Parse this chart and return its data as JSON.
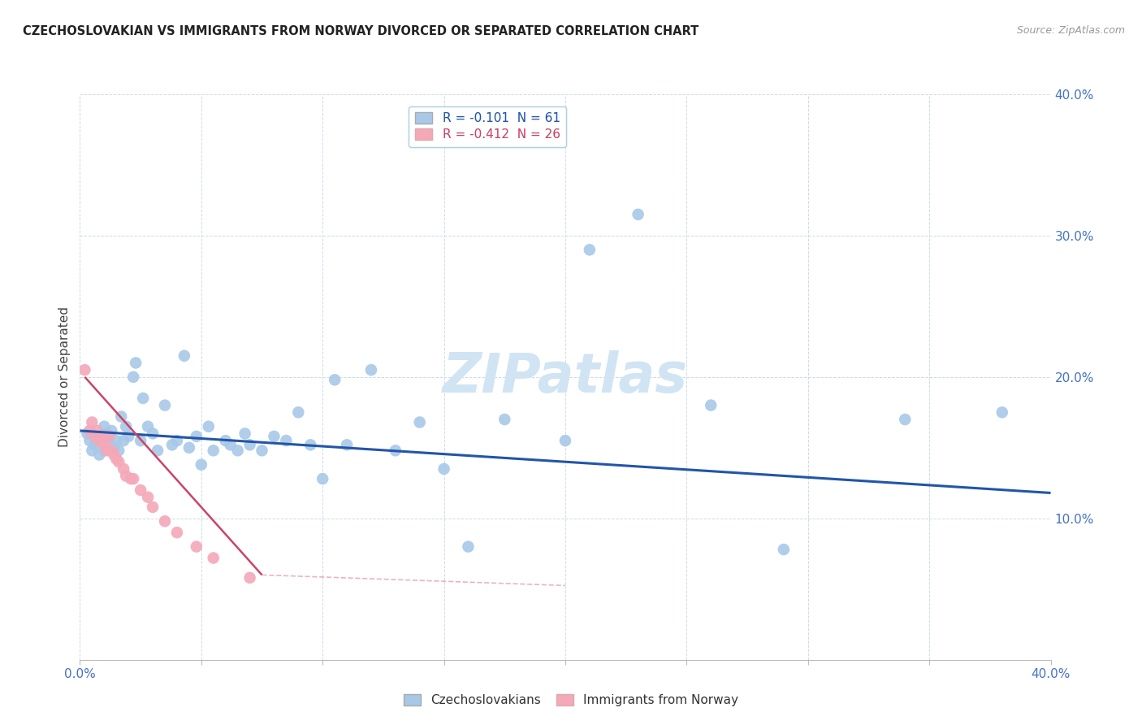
{
  "title": "CZECHOSLOVAKIAN VS IMMIGRANTS FROM NORWAY DIVORCED OR SEPARATED CORRELATION CHART",
  "source": "Source: ZipAtlas.com",
  "ylabel": "Divorced or Separated",
  "xlim": [
    0.0,
    0.4
  ],
  "ylim": [
    0.0,
    0.4
  ],
  "blue_R": "-0.101",
  "blue_N": "61",
  "pink_R": "-0.412",
  "pink_N": "26",
  "blue_color": "#a8c8e8",
  "pink_color": "#f4a8b8",
  "blue_line_color": "#2255aa",
  "pink_line_color": "#cc4466",
  "watermark_color": "#d0e4f4",
  "title_color": "#222222",
  "axis_label_color": "#4472c4",
  "blue_scatter_x": [
    0.003,
    0.004,
    0.005,
    0.006,
    0.007,
    0.008,
    0.009,
    0.01,
    0.01,
    0.011,
    0.012,
    0.013,
    0.014,
    0.015,
    0.016,
    0.017,
    0.018,
    0.019,
    0.02,
    0.022,
    0.023,
    0.025,
    0.026,
    0.028,
    0.03,
    0.032,
    0.035,
    0.038,
    0.04,
    0.043,
    0.045,
    0.048,
    0.05,
    0.053,
    0.055,
    0.06,
    0.062,
    0.065,
    0.068,
    0.07,
    0.075,
    0.08,
    0.085,
    0.09,
    0.095,
    0.1,
    0.105,
    0.11,
    0.12,
    0.13,
    0.14,
    0.15,
    0.16,
    0.175,
    0.2,
    0.21,
    0.23,
    0.26,
    0.29,
    0.34,
    0.38
  ],
  "blue_scatter_y": [
    0.16,
    0.155,
    0.148,
    0.152,
    0.155,
    0.145,
    0.158,
    0.165,
    0.148,
    0.16,
    0.155,
    0.162,
    0.15,
    0.155,
    0.148,
    0.172,
    0.155,
    0.165,
    0.158,
    0.2,
    0.21,
    0.155,
    0.185,
    0.165,
    0.16,
    0.148,
    0.18,
    0.152,
    0.155,
    0.215,
    0.15,
    0.158,
    0.138,
    0.165,
    0.148,
    0.155,
    0.152,
    0.148,
    0.16,
    0.152,
    0.148,
    0.158,
    0.155,
    0.175,
    0.152,
    0.128,
    0.198,
    0.152,
    0.205,
    0.148,
    0.168,
    0.135,
    0.08,
    0.17,
    0.155,
    0.29,
    0.315,
    0.18,
    0.078,
    0.17,
    0.175
  ],
  "pink_scatter_x": [
    0.002,
    0.004,
    0.005,
    0.006,
    0.007,
    0.008,
    0.009,
    0.01,
    0.011,
    0.012,
    0.013,
    0.014,
    0.015,
    0.016,
    0.018,
    0.019,
    0.021,
    0.022,
    0.025,
    0.028,
    0.03,
    0.035,
    0.04,
    0.048,
    0.055,
    0.07
  ],
  "pink_scatter_y": [
    0.205,
    0.162,
    0.168,
    0.158,
    0.162,
    0.155,
    0.158,
    0.152,
    0.148,
    0.158,
    0.148,
    0.145,
    0.142,
    0.14,
    0.135,
    0.13,
    0.128,
    0.128,
    0.12,
    0.115,
    0.108,
    0.098,
    0.09,
    0.08,
    0.072,
    0.058
  ],
  "blue_line_start_x": 0.0,
  "blue_line_end_x": 0.4,
  "blue_line_start_y": 0.162,
  "blue_line_end_y": 0.118,
  "pink_line_start_x": 0.002,
  "pink_line_end_x": 0.075,
  "pink_line_start_y": 0.2,
  "pink_line_end_y": 0.06
}
